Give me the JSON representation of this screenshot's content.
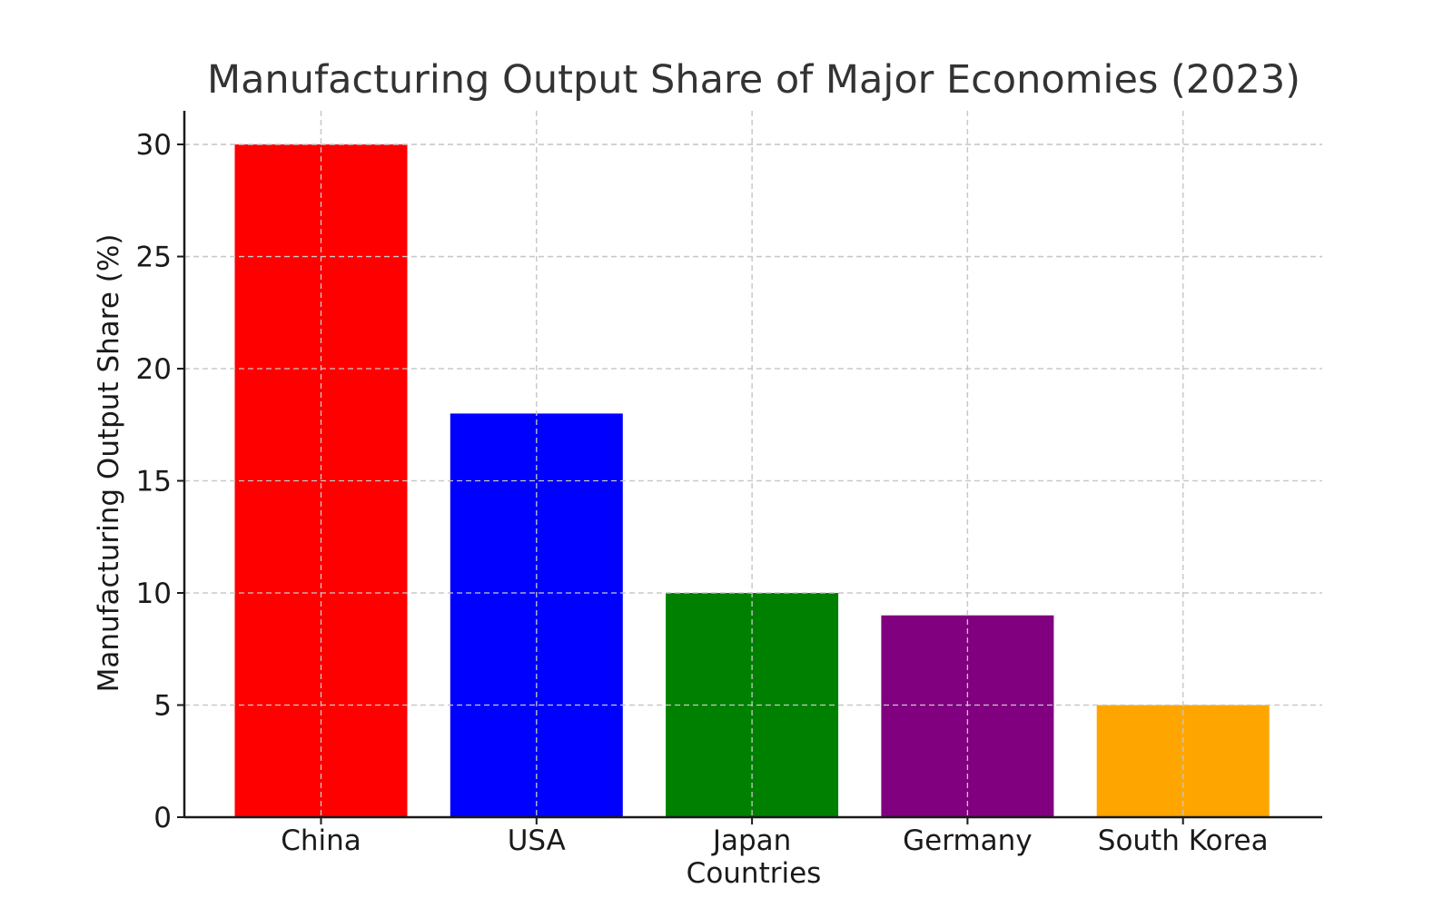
{
  "chart_data": {
    "type": "bar",
    "title": "Manufacturing Output Share of Major Economies (2023)",
    "xlabel": "Countries",
    "ylabel": "Manufacturing Output Share (%)",
    "categories": [
      "China",
      "USA",
      "Japan",
      "Germany",
      "South Korea"
    ],
    "values": [
      30,
      18,
      10,
      9,
      5
    ],
    "colors": [
      "#ff0000",
      "#0000ff",
      "#008000",
      "#800080",
      "#ffa500"
    ],
    "ylim": [
      0,
      31.5
    ],
    "yticks": [
      0,
      5,
      10,
      15,
      20,
      25,
      30
    ],
    "grid": true,
    "legend": "none"
  }
}
